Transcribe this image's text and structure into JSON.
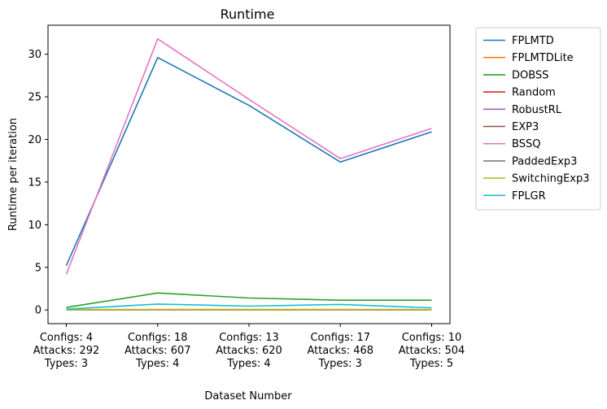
{
  "chart_data": {
    "type": "line",
    "title": "Runtime",
    "xlabel": "Dataset Number",
    "ylabel": "Runtime per iteration",
    "categories": [
      [
        "Configs: 4",
        "Attacks: 292",
        "Types: 3"
      ],
      [
        "Configs: 18",
        "Attacks: 607",
        "Types: 4"
      ],
      [
        "Configs: 13",
        "Attacks: 620",
        "Types: 4"
      ],
      [
        "Configs: 17",
        "Attacks: 468",
        "Types: 3"
      ],
      [
        "Configs: 10",
        "Attacks: 504",
        "Types: 5"
      ]
    ],
    "ylim": [
      -1.6,
      33.4
    ],
    "yticks": [
      0,
      5,
      10,
      15,
      20,
      25,
      30
    ],
    "grid": false,
    "legend_position": "outside-right",
    "series": [
      {
        "name": "FPLMTD",
        "color": "#1f77b4",
        "values": [
          5.2,
          29.6,
          24.0,
          17.35,
          20.9
        ]
      },
      {
        "name": "FPLMTDLite",
        "color": "#ff7f0e",
        "values": [
          0.05,
          0.07,
          0.06,
          0.06,
          0.05
        ]
      },
      {
        "name": "DOBSS",
        "color": "#2ca02c",
        "values": [
          0.3,
          2.0,
          1.4,
          1.15,
          1.15
        ]
      },
      {
        "name": "Random",
        "color": "#d62728",
        "values": [
          0.01,
          0.01,
          0.01,
          0.01,
          0.01
        ]
      },
      {
        "name": "RobustRL",
        "color": "#9467bd",
        "values": [
          0.02,
          0.02,
          0.02,
          0.02,
          0.02
        ]
      },
      {
        "name": "EXP3",
        "color": "#8c564b",
        "values": [
          0.02,
          0.03,
          0.03,
          0.03,
          0.02
        ]
      },
      {
        "name": "BSSQ",
        "color": "#e377c2",
        "values": [
          4.2,
          31.8,
          24.7,
          17.75,
          21.3
        ]
      },
      {
        "name": "PaddedExp3",
        "color": "#7f7f7f",
        "values": [
          0.02,
          0.03,
          0.03,
          0.03,
          0.02
        ]
      },
      {
        "name": "SwitchingExp3",
        "color": "#bcbd22",
        "values": [
          0.03,
          0.04,
          0.04,
          0.04,
          0.03
        ]
      },
      {
        "name": "FPLGR",
        "color": "#17becf",
        "values": [
          0.1,
          0.7,
          0.45,
          0.65,
          0.25
        ]
      }
    ]
  }
}
